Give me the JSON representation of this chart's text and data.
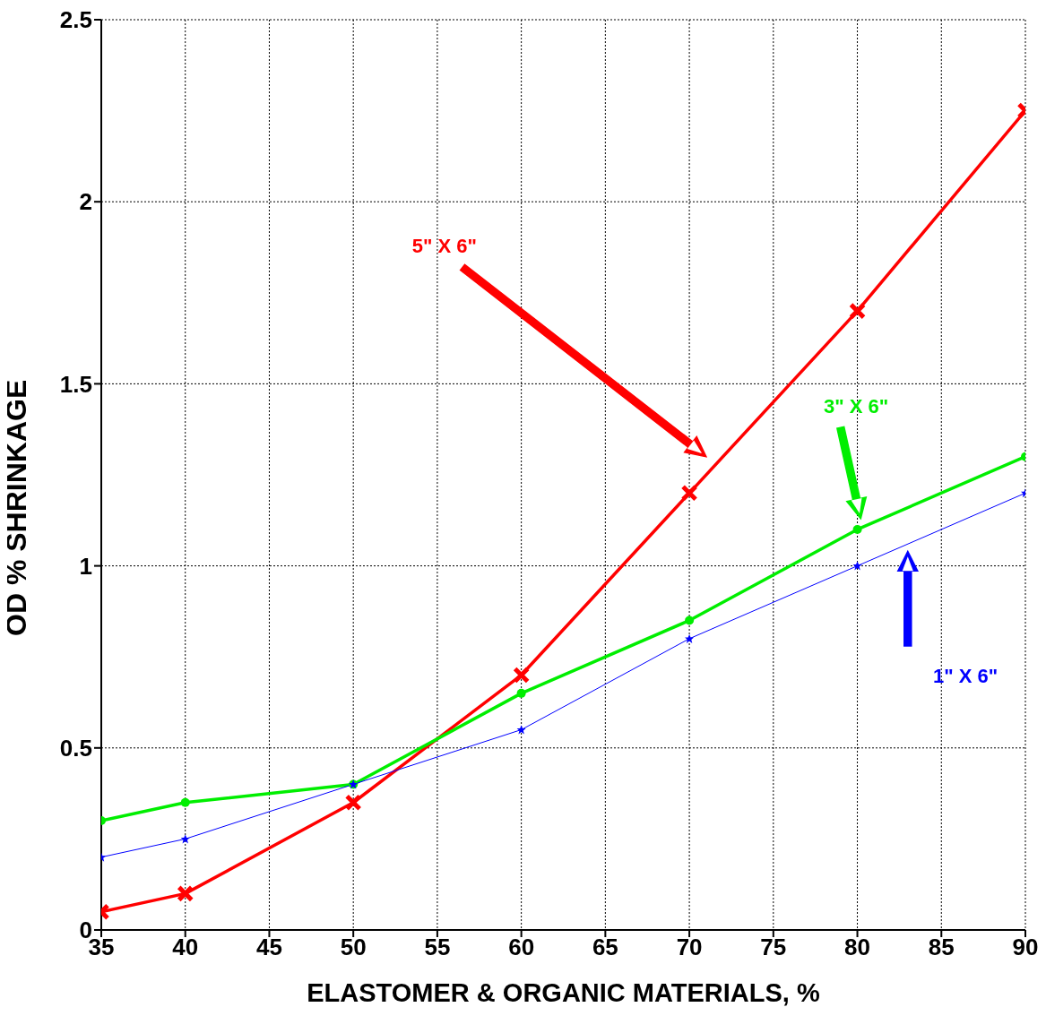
{
  "chart_data": {
    "type": "line",
    "xlabel": "ELASTOMER & ORGANIC MATERIALS, %",
    "ylabel": "OD % SHRINKAGE",
    "x": [
      35,
      40,
      50,
      60,
      70,
      80,
      90
    ],
    "series": [
      {
        "name": "5\" X 6\"",
        "color": "#ff0000",
        "marker": "cross",
        "values": [
          0.05,
          0.1,
          0.35,
          0.7,
          1.2,
          1.7,
          2.25
        ]
      },
      {
        "name": "3\" X 6\"",
        "color": "#00ee00",
        "marker": "circle",
        "values": [
          0.3,
          0.35,
          0.4,
          0.65,
          0.85,
          1.1,
          1.3
        ]
      },
      {
        "name": "1\" X 6\"",
        "color": "#0000ff",
        "marker": "star",
        "values": [
          0.2,
          0.25,
          0.4,
          0.55,
          0.8,
          1.0,
          1.2
        ]
      }
    ],
    "xlim": [
      35,
      90
    ],
    "xticks": [
      35,
      40,
      45,
      50,
      55,
      60,
      65,
      70,
      75,
      80,
      85,
      90
    ],
    "ylim": [
      0,
      2.5
    ],
    "yticks": [
      0,
      0.5,
      1,
      1.5,
      2,
      2.5
    ],
    "grid": true,
    "legend": false,
    "line_style": "solid"
  }
}
